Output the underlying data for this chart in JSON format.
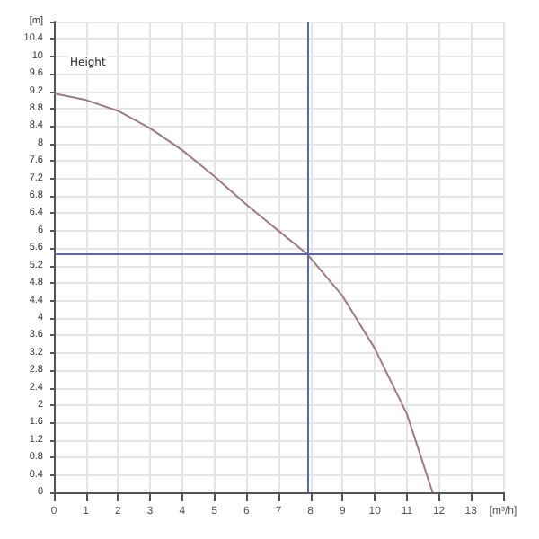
{
  "chart_data": {
    "type": "line",
    "ylabel": "Height",
    "x": [
      0,
      1,
      2,
      3,
      4,
      5,
      6,
      7,
      7.9,
      9,
      10,
      11,
      11.8
    ],
    "series": [
      {
        "color": "#a07a80",
        "values": [
          9.15,
          9.0,
          8.75,
          8.35,
          7.85,
          7.25,
          6.6,
          6.0,
          5.46,
          4.5,
          3.3,
          1.8,
          0
        ]
      }
    ],
    "xlim": [
      0,
      14
    ],
    "xticks": [
      0,
      1,
      2,
      3,
      4,
      5,
      6,
      7,
      8,
      9,
      10,
      11,
      12,
      13,
      {
        "value": 14,
        "label": "[m³/h]"
      }
    ],
    "ylim": [
      0,
      10.8
    ],
    "yticks": [
      0,
      0.4,
      0.8,
      1.2,
      1.6,
      2,
      2.4,
      2.8,
      3.2,
      3.6,
      4,
      4.4,
      4.8,
      5.2,
      5.6,
      6,
      6.4,
      6.8,
      7.2,
      7.6,
      8,
      8.4,
      8.8,
      9.2,
      9.6,
      10,
      10.4,
      {
        "value": 10.8,
        "label": "[m]"
      }
    ],
    "ref_lines": [
      {
        "axis": "x",
        "value": 7.9,
        "color": "#5a6aa8"
      },
      {
        "axis": "y",
        "value": 5.46,
        "color": "#5a6aa8"
      }
    ],
    "grid": true,
    "marker": "none",
    "line_style": "solid"
  }
}
